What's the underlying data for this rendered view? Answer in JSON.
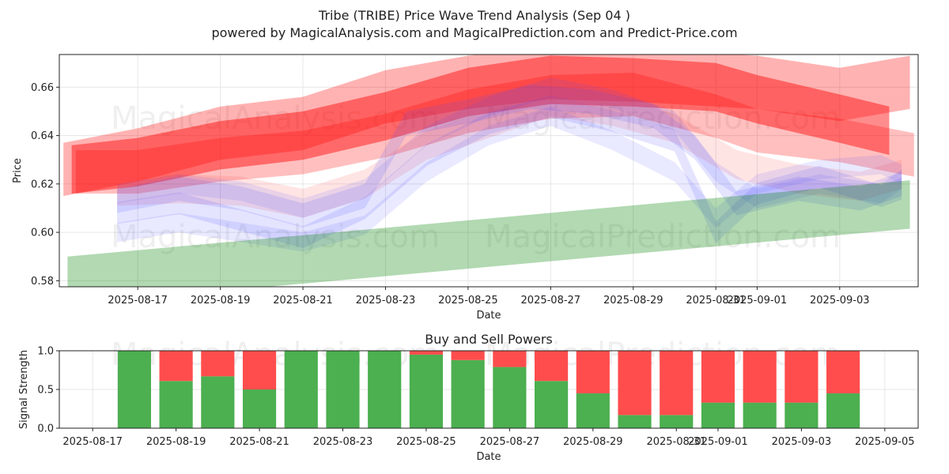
{
  "chart_data": [
    {
      "type": "area",
      "title": "Tribe (TRIBE) Price Wave Trend Analysis (Sep 04 )",
      "subtitle": "powered by MagicalAnalysis.com and MagicalPrediction.com and Predict-Price.com",
      "xlabel": "Date",
      "ylabel": "Price",
      "ylim": [
        0.5775,
        0.6735
      ],
      "yticks": [
        "0.58",
        "0.60",
        "0.62",
        "0.64",
        "0.66"
      ],
      "ytick_values": [
        0.58,
        0.6,
        0.62,
        0.64,
        0.66
      ],
      "xticks": [
        "2025-08-17",
        "2025-08-19",
        "2025-08-21",
        "2025-08-23",
        "2025-08-25",
        "2025-08-27",
        "2025-08-29",
        "2025-08-31",
        "2025-09-01",
        "2025-09-03"
      ],
      "xtick_days": [
        1,
        3,
        5,
        7,
        9,
        11,
        13,
        15,
        16,
        18
      ],
      "xlim_days": [
        -0.9,
        19.9
      ],
      "grid": true,
      "watermarks": [
        "MagicalAnalysis.com",
        "MagicalPrediction.com",
        "MagicalAnalysis.com",
        "MagicalPrediction.com"
      ],
      "series": [
        {
          "name": "red-trend-upper",
          "color": "#ff0000",
          "opacity": 0.3,
          "x": [
            -0.8,
            1,
            3,
            5,
            7,
            9,
            11,
            13,
            15,
            16,
            18,
            19.7
          ],
          "center": [
            0.626,
            0.632,
            0.641,
            0.645,
            0.656,
            0.662,
            0.666,
            0.665,
            0.663,
            0.662,
            0.657,
            0.662
          ],
          "width": 0.022
        },
        {
          "name": "red-trend-main",
          "color": "#ff0000",
          "opacity": 0.45,
          "x": [
            -0.6,
            1,
            3,
            5,
            7,
            9,
            11,
            13,
            15,
            16,
            18,
            19.2
          ],
          "center": [
            0.626,
            0.629,
            0.636,
            0.64,
            0.648,
            0.658,
            0.663,
            0.662,
            0.66,
            0.655,
            0.647,
            0.642
          ],
          "width": 0.02
        },
        {
          "name": "red-trend-lower",
          "color": "#ff0000",
          "opacity": 0.25,
          "x": [
            -0.5,
            1,
            3,
            5,
            7,
            9,
            11,
            13,
            15,
            16,
            18,
            19.8
          ],
          "center": [
            0.625,
            0.625,
            0.63,
            0.633,
            0.64,
            0.65,
            0.656,
            0.657,
            0.648,
            0.642,
            0.638,
            0.632
          ],
          "width": 0.018
        },
        {
          "name": "pink-wave",
          "color": "#ff4d4d",
          "opacity": 0.15,
          "x": [
            0.5,
            2,
            3.5,
            5,
            6.5,
            8,
            9.5,
            11,
            12.5,
            14,
            15.5,
            17,
            18.5,
            19.5
          ],
          "center": [
            0.617,
            0.618,
            0.617,
            0.612,
            0.62,
            0.636,
            0.645,
            0.654,
            0.65,
            0.643,
            0.628,
            0.622,
            0.619,
            0.624
          ],
          "width": 0.012
        },
        {
          "name": "blue-wave-1",
          "color": "#4d4dff",
          "opacity": 0.15,
          "x": [
            0.5,
            2,
            3.5,
            5,
            6.5,
            7.5,
            9,
            10.5,
            12,
            13.5,
            14.5,
            15.5,
            17,
            18.5,
            19.5
          ],
          "center": [
            0.613,
            0.618,
            0.614,
            0.607,
            0.615,
            0.645,
            0.65,
            0.656,
            0.654,
            0.648,
            0.635,
            0.612,
            0.618,
            0.614,
            0.62
          ],
          "width": 0.01
        },
        {
          "name": "blue-wave-2",
          "color": "#4d4dff",
          "opacity": 0.15,
          "x": [
            0.5,
            2,
            3.5,
            5,
            6.5,
            8,
            9.5,
            11,
            12.5,
            14,
            15,
            16,
            17.5,
            19,
            19.5
          ],
          "center": [
            0.608,
            0.612,
            0.605,
            0.598,
            0.61,
            0.632,
            0.645,
            0.652,
            0.646,
            0.638,
            0.6,
            0.616,
            0.623,
            0.615,
            0.618
          ],
          "width": 0.009
        },
        {
          "name": "blue-wave-3",
          "color": "#4d4dff",
          "opacity": 0.12,
          "x": [
            0.5,
            2,
            3.5,
            5,
            6.5,
            8,
            9.5,
            11,
            12.5,
            14,
            15,
            16,
            17.5,
            19,
            19.5
          ],
          "center": [
            0.6,
            0.604,
            0.6,
            0.596,
            0.603,
            0.625,
            0.64,
            0.648,
            0.638,
            0.625,
            0.606,
            0.62,
            0.626,
            0.628,
            0.624
          ],
          "width": 0.008
        },
        {
          "name": "blue-wave-4",
          "color": "#4d4dff",
          "opacity": 0.12,
          "x": [
            0.5,
            2,
            3.5,
            5,
            6.5,
            8,
            9.5,
            11,
            12.5,
            14,
            15,
            16,
            17.5,
            19,
            19.5
          ],
          "center": [
            0.616,
            0.62,
            0.617,
            0.61,
            0.618,
            0.64,
            0.652,
            0.66,
            0.655,
            0.646,
            0.625,
            0.614,
            0.62,
            0.616,
            0.622
          ],
          "width": 0.008
        },
        {
          "name": "green-trend",
          "color": "#008000",
          "opacity": 0.3,
          "x": [
            -0.7,
            19.7
          ],
          "center": [
            0.58,
            0.6115
          ],
          "width": 0.02
        }
      ]
    },
    {
      "type": "bar",
      "title": "Buy and Sell Powers",
      "xlabel": "Date",
      "ylabel": "Signal Strength",
      "ylim": [
        0,
        1
      ],
      "yticks": [
        "0.0",
        "0.5",
        "1.0"
      ],
      "ytick_values": [
        0,
        0.5,
        1.0
      ],
      "xticks": [
        "2025-08-17",
        "2025-08-19",
        "2025-08-21",
        "2025-08-23",
        "2025-08-25",
        "2025-08-27",
        "2025-08-29",
        "2025-08-31",
        "2025-09-01",
        "2025-09-03",
        "2025-09-05"
      ],
      "xtick_days": [
        0,
        2,
        4,
        6,
        8,
        10,
        12,
        14,
        15,
        17,
        19
      ],
      "xlim_days": [
        -0.8,
        19.8
      ],
      "x_days": [
        1,
        2,
        3,
        4,
        5,
        6,
        7,
        8,
        9,
        10,
        11,
        12,
        13,
        14,
        15,
        16,
        17,
        18
      ],
      "series": [
        {
          "name": "Buy",
          "color": "#4caf50",
          "values": [
            1.0,
            0.61,
            0.67,
            0.5,
            1.0,
            1.0,
            1.0,
            0.95,
            0.88,
            0.79,
            0.61,
            0.45,
            0.17,
            0.17,
            0.33,
            0.33,
            0.33,
            0.45
          ]
        },
        {
          "name": "Sell",
          "color": "#ff4d4d",
          "values": [
            0.0,
            0.39,
            0.33,
            0.5,
            0.0,
            0.0,
            0.0,
            0.05,
            0.12,
            0.21,
            0.39,
            0.55,
            0.83,
            0.83,
            0.67,
            0.67,
            0.67,
            0.55
          ]
        }
      ]
    }
  ]
}
